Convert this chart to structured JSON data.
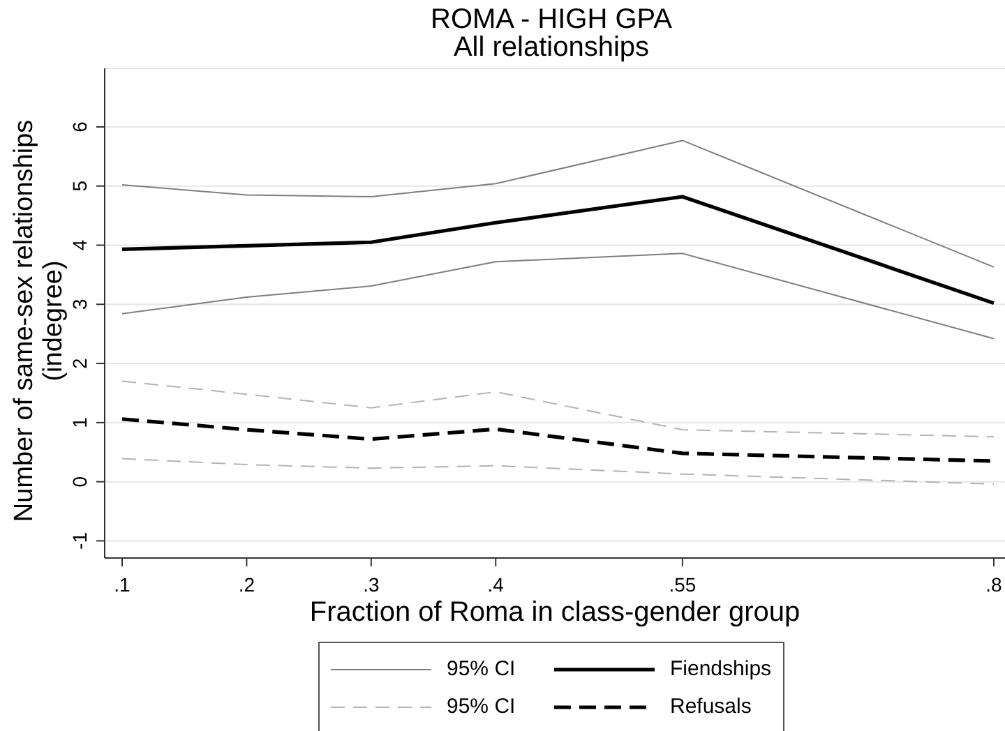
{
  "chart_data": {
    "type": "line",
    "title": "ROMA - HIGH GPA",
    "subtitle": "All relationships",
    "xlabel": "Fraction of Roma in class-gender group",
    "ylabel": "Number of same-sex relationships\n(indegree)",
    "x": [
      0.1,
      0.2,
      0.3,
      0.4,
      0.55,
      0.8
    ],
    "series": [
      {
        "name": "95% CI",
        "color": "#7f7f7f",
        "values": [
          5.02,
          4.85,
          4.82,
          5.04,
          5.77,
          3.63
        ]
      },
      {
        "name": "Fiendships",
        "color": "#000000",
        "values": [
          3.93,
          3.99,
          4.05,
          4.38,
          4.82,
          3.02
        ]
      },
      {
        "name": "95% CI",
        "color": "#b3b3b3",
        "line_style": "dashed",
        "values": [
          1.7,
          1.48,
          1.25,
          1.52,
          0.88,
          0.76
        ]
      },
      {
        "name": "Refusals",
        "color": "#000000",
        "line_style": "dashed",
        "values": [
          1.06,
          0.88,
          0.72,
          0.89,
          0.48,
          0.35
        ]
      },
      {
        "color": "#7f7f7f",
        "values": [
          2.84,
          3.12,
          3.31,
          3.72,
          3.86,
          2.42
        ]
      },
      {
        "color": "#b3b3b3",
        "line_style": "dashed",
        "values": [
          0.39,
          0.29,
          0.23,
          0.27,
          0.13,
          -0.04
        ]
      }
    ],
    "xlim": [
      0.086,
      0.809
    ],
    "xticks": [
      {
        "value": 0.1,
        "label": ".1"
      },
      {
        "value": 0.2,
        "label": ".2"
      },
      {
        "value": 0.3,
        "label": ".3"
      },
      {
        "value": 0.4,
        "label": ".4"
      },
      {
        "value": 0.55,
        "label": ".55"
      },
      {
        "value": 0.8,
        "label": ".8"
      }
    ],
    "ylim": [
      -1.29,
      6.99
    ],
    "yticks": [
      -1,
      0,
      1,
      2,
      3,
      4,
      5,
      6
    ],
    "grid": "y",
    "legend": "bottom",
    "line_style": "solid"
  }
}
